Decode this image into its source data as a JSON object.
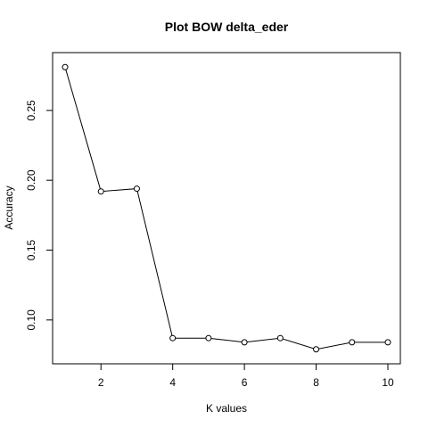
{
  "chart_data": {
    "type": "line",
    "title": "Plot BOW delta_eder",
    "xlabel": "K values",
    "ylabel": "Accuracy",
    "x": [
      1,
      2,
      3,
      4,
      5,
      6,
      7,
      8,
      9,
      10
    ],
    "y": [
      0.281,
      0.192,
      0.194,
      0.087,
      0.087,
      0.084,
      0.087,
      0.079,
      0.084,
      0.084
    ],
    "xlim": [
      1,
      10
    ],
    "ylim": [
      0.075,
      0.285
    ],
    "xticks": [
      2,
      4,
      6,
      8,
      10
    ],
    "xtick_labels": [
      "2",
      "4",
      "6",
      "8",
      "10"
    ],
    "yticks": [
      0.1,
      0.15,
      0.2,
      0.25
    ],
    "ytick_labels": [
      "0.10",
      "0.15",
      "0.20",
      "0.25"
    ],
    "marker": "open-circle",
    "line_color": "#000000",
    "grid": false,
    "legend": "none"
  }
}
